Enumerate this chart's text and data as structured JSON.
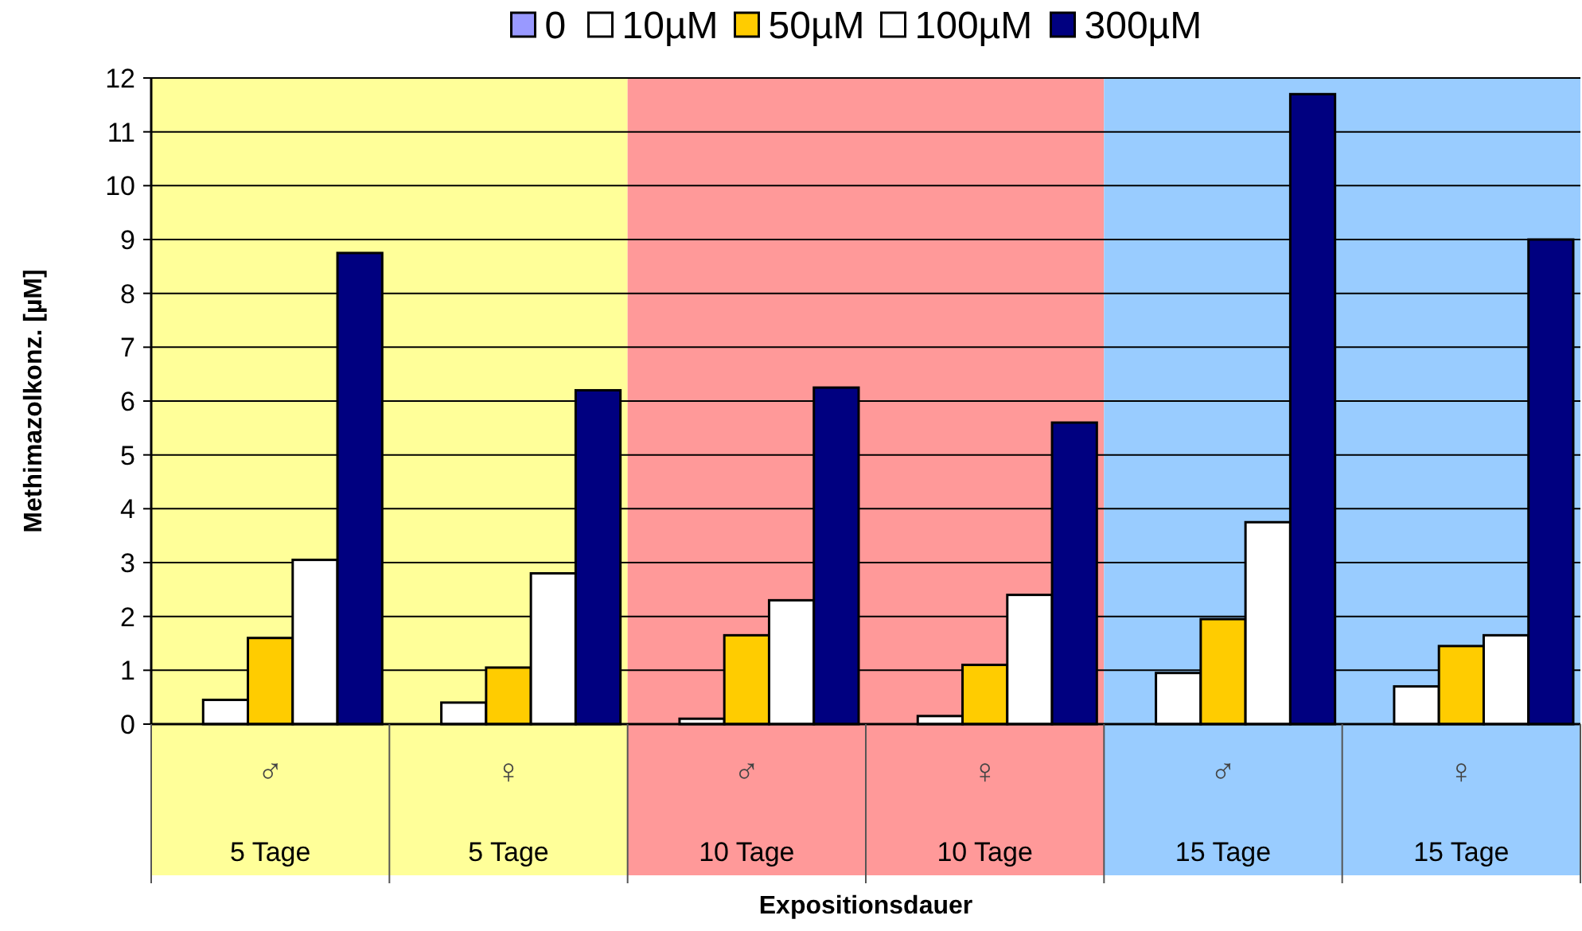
{
  "chart_data": {
    "type": "bar",
    "ylabel": "Methimazolkonz. [µM]",
    "annotations": [
      "Expositionsdauer"
    ],
    "categories": [
      "♂\n5 Tage",
      "♀\n5 Tage",
      "♂\n10 Tage",
      "♀\n10 Tage",
      "♂\n15 Tage",
      "♀\n15 Tage"
    ],
    "series": [
      {
        "name": "0",
        "color": "#9999ff",
        "values": [
          0,
          0,
          0,
          0,
          0,
          0
        ]
      },
      {
        "name": "10µM",
        "color": "#ffffff",
        "values": [
          0.45,
          0.4,
          0.1,
          0.15,
          0.95,
          0.7
        ]
      },
      {
        "name": "50µM",
        "color": "#ffcc00",
        "values": [
          1.6,
          1.05,
          1.65,
          1.1,
          1.95,
          1.45
        ]
      },
      {
        "name": "100µM",
        "color": "#ffffff",
        "values": [
          3.05,
          2.8,
          2.3,
          2.4,
          3.75,
          1.65
        ]
      },
      {
        "name": "300µM",
        "color": "#000080",
        "values": [
          8.75,
          6.2,
          6.25,
          5.6,
          11.7,
          9.0
        ]
      }
    ],
    "ylim": [
      0,
      12
    ],
    "yticks": [
      0,
      1,
      2,
      3,
      4,
      5,
      6,
      7,
      8,
      9,
      10,
      11,
      12
    ],
    "grid": "y",
    "legend": "top",
    "bands": [
      {
        "axis": "x",
        "from": "♂\n5 Tage",
        "to": "♀\n5 Tage",
        "color": "#ffff99"
      },
      {
        "axis": "x",
        "from": "♂\n10 Tage",
        "to": "♀\n10 Tage",
        "color": "#ff9999"
      },
      {
        "axis": "x",
        "from": "♂\n15 Tage",
        "to": "♀\n15 Tage",
        "color": "#99ccff"
      }
    ]
  }
}
